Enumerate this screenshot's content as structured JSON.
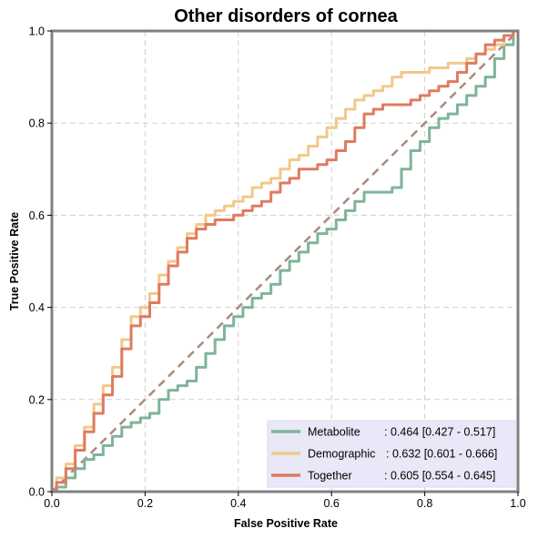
{
  "chart_data": {
    "type": "line",
    "title": "Other disorders of cornea",
    "xlabel": "False Positive Rate",
    "ylabel": "True Positive Rate",
    "xlim": [
      0,
      1
    ],
    "ylim": [
      0,
      1
    ],
    "x_ticks": [
      "0.0",
      "0.2",
      "0.4",
      "0.6",
      "0.8",
      "1.0"
    ],
    "y_ticks": [
      "0.0",
      "0.2",
      "0.4",
      "0.6",
      "0.8",
      "1.0"
    ],
    "grid": true,
    "legend_position": "bottom-right",
    "diagonal": {
      "x": [
        0,
        1
      ],
      "y": [
        0,
        1
      ],
      "color": "#a88a7e",
      "style": "dashed"
    },
    "series": [
      {
        "name": "Metabolite",
        "label": ": 0.464 [0.427 - 0.517]",
        "color": "#7fb49a",
        "x": [
          0,
          0.02,
          0.04,
          0.06,
          0.08,
          0.1,
          0.12,
          0.14,
          0.16,
          0.18,
          0.2,
          0.22,
          0.24,
          0.26,
          0.28,
          0.3,
          0.32,
          0.34,
          0.36,
          0.38,
          0.4,
          0.42,
          0.44,
          0.46,
          0.48,
          0.5,
          0.52,
          0.54,
          0.56,
          0.58,
          0.6,
          0.62,
          0.64,
          0.66,
          0.68,
          0.7,
          0.72,
          0.74,
          0.76,
          0.78,
          0.8,
          0.82,
          0.84,
          0.86,
          0.88,
          0.9,
          0.92,
          0.94,
          0.96,
          0.98,
          1.0
        ],
        "y": [
          0,
          0.01,
          0.03,
          0.05,
          0.07,
          0.08,
          0.1,
          0.12,
          0.14,
          0.15,
          0.16,
          0.17,
          0.2,
          0.22,
          0.23,
          0.24,
          0.27,
          0.3,
          0.33,
          0.36,
          0.38,
          0.4,
          0.42,
          0.43,
          0.45,
          0.48,
          0.5,
          0.52,
          0.54,
          0.56,
          0.57,
          0.59,
          0.61,
          0.63,
          0.65,
          0.65,
          0.65,
          0.66,
          0.7,
          0.74,
          0.76,
          0.79,
          0.81,
          0.82,
          0.84,
          0.86,
          0.88,
          0.9,
          0.94,
          0.97,
          1.0
        ]
      },
      {
        "name": "Demographic",
        "label": ": 0.632 [0.601 - 0.666]",
        "color": "#f0c98a",
        "x": [
          0,
          0.02,
          0.04,
          0.06,
          0.08,
          0.1,
          0.12,
          0.14,
          0.16,
          0.18,
          0.2,
          0.22,
          0.24,
          0.26,
          0.28,
          0.3,
          0.32,
          0.34,
          0.36,
          0.38,
          0.4,
          0.42,
          0.44,
          0.46,
          0.48,
          0.5,
          0.52,
          0.54,
          0.56,
          0.58,
          0.6,
          0.62,
          0.64,
          0.66,
          0.68,
          0.7,
          0.72,
          0.74,
          0.76,
          0.78,
          0.8,
          0.82,
          0.84,
          0.86,
          0.88,
          0.9,
          0.92,
          0.94,
          0.96,
          0.98,
          1.0
        ],
        "y": [
          0,
          0.03,
          0.06,
          0.1,
          0.14,
          0.19,
          0.23,
          0.27,
          0.33,
          0.38,
          0.4,
          0.43,
          0.47,
          0.5,
          0.53,
          0.56,
          0.58,
          0.6,
          0.61,
          0.62,
          0.63,
          0.64,
          0.66,
          0.67,
          0.68,
          0.7,
          0.72,
          0.73,
          0.75,
          0.77,
          0.79,
          0.81,
          0.83,
          0.85,
          0.86,
          0.87,
          0.88,
          0.9,
          0.91,
          0.91,
          0.91,
          0.92,
          0.92,
          0.93,
          0.93,
          0.94,
          0.95,
          0.96,
          0.97,
          0.99,
          1.0
        ]
      },
      {
        "name": "Together",
        "label": ": 0.605 [0.554 - 0.645]",
        "color": "#e07b5e",
        "x": [
          0,
          0.02,
          0.04,
          0.06,
          0.08,
          0.1,
          0.12,
          0.14,
          0.16,
          0.18,
          0.2,
          0.22,
          0.24,
          0.26,
          0.28,
          0.3,
          0.32,
          0.34,
          0.36,
          0.38,
          0.4,
          0.42,
          0.44,
          0.46,
          0.48,
          0.5,
          0.52,
          0.54,
          0.56,
          0.58,
          0.6,
          0.62,
          0.64,
          0.66,
          0.68,
          0.7,
          0.72,
          0.74,
          0.76,
          0.78,
          0.8,
          0.82,
          0.84,
          0.86,
          0.88,
          0.9,
          0.92,
          0.94,
          0.96,
          0.98,
          1.0
        ],
        "y": [
          0,
          0.02,
          0.05,
          0.09,
          0.13,
          0.17,
          0.21,
          0.25,
          0.31,
          0.36,
          0.38,
          0.41,
          0.45,
          0.49,
          0.52,
          0.55,
          0.57,
          0.58,
          0.59,
          0.59,
          0.6,
          0.61,
          0.62,
          0.63,
          0.65,
          0.67,
          0.68,
          0.7,
          0.7,
          0.71,
          0.72,
          0.74,
          0.76,
          0.79,
          0.82,
          0.83,
          0.84,
          0.84,
          0.84,
          0.85,
          0.86,
          0.87,
          0.88,
          0.89,
          0.91,
          0.93,
          0.95,
          0.97,
          0.98,
          0.99,
          1.0
        ]
      }
    ]
  },
  "colors": {
    "frame": "#808080",
    "grid": "#d0d0d0",
    "legend_bg": "#e8e8f8"
  }
}
